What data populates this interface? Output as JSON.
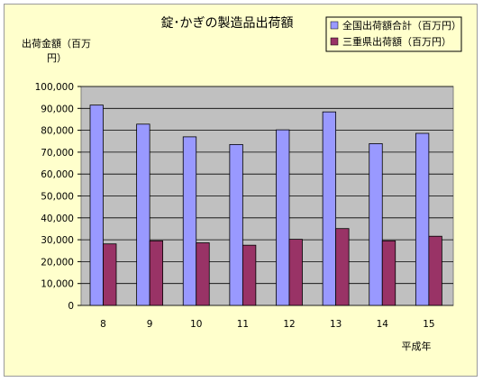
{
  "chart_data": {
    "type": "bar",
    "title": "錠･かぎの製造品出荷額",
    "ylabel": "出荷金額（百万円）",
    "xlabel": "平成年",
    "categories": [
      "8",
      "9",
      "10",
      "11",
      "12",
      "13",
      "14",
      "15"
    ],
    "ylim": [
      0,
      100000
    ],
    "ytick_step": 10000,
    "grid": true,
    "legend_position": "top-right",
    "series": [
      {
        "name": "全国出荷額合計（百万円）",
        "color": "#9999ff",
        "values": [
          91500,
          82800,
          77000,
          73500,
          80200,
          88400,
          73900,
          78600
        ]
      },
      {
        "name": "三重県出荷額（百万円）",
        "color": "#993366",
        "values": [
          28100,
          29500,
          28600,
          27500,
          30200,
          35100,
          29500,
          31600
        ]
      }
    ],
    "colors": {
      "plot_background": "#c0c0c0",
      "chart_background": "#ffffcc"
    }
  }
}
